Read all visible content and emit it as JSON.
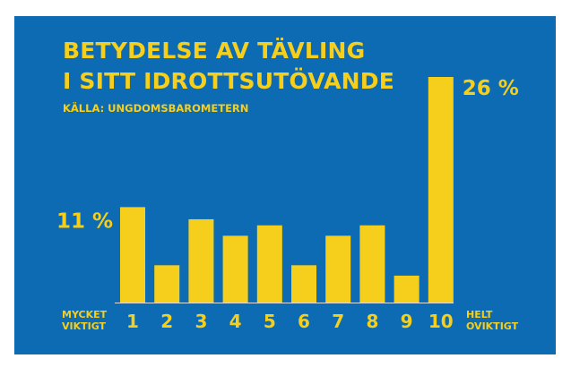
{
  "chart_data": {
    "type": "bar",
    "title_lines": [
      "BETYDELSE AV TÄVLING",
      "I SITT IDROTTSUTÖVANDE"
    ],
    "source": "KÄLLA: UNGDOMSBAROMETERN",
    "categories": [
      "1",
      "2",
      "3",
      "4",
      "5",
      "6",
      "7",
      "8",
      "9",
      "10"
    ],
    "values": [
      11,
      4.3,
      9.6,
      7.7,
      8.9,
      4.3,
      7.7,
      8.9,
      3.1,
      26
    ],
    "data_labels": [
      {
        "category": "1",
        "text": "11 %"
      },
      {
        "category": "10",
        "text": "26 %"
      }
    ],
    "axis_end_labels": {
      "left": [
        "MYCKET",
        "VIKTIGT"
      ],
      "right": [
        "HELT",
        "OVIKTIGT"
      ]
    },
    "ylim": [
      0,
      26
    ],
    "grid": false,
    "legend": "none"
  },
  "colors": {
    "background": "#0d6bb4",
    "bars": "#f5cf1c",
    "text": "#f5cf1c",
    "axis": "#d8dde4"
  }
}
